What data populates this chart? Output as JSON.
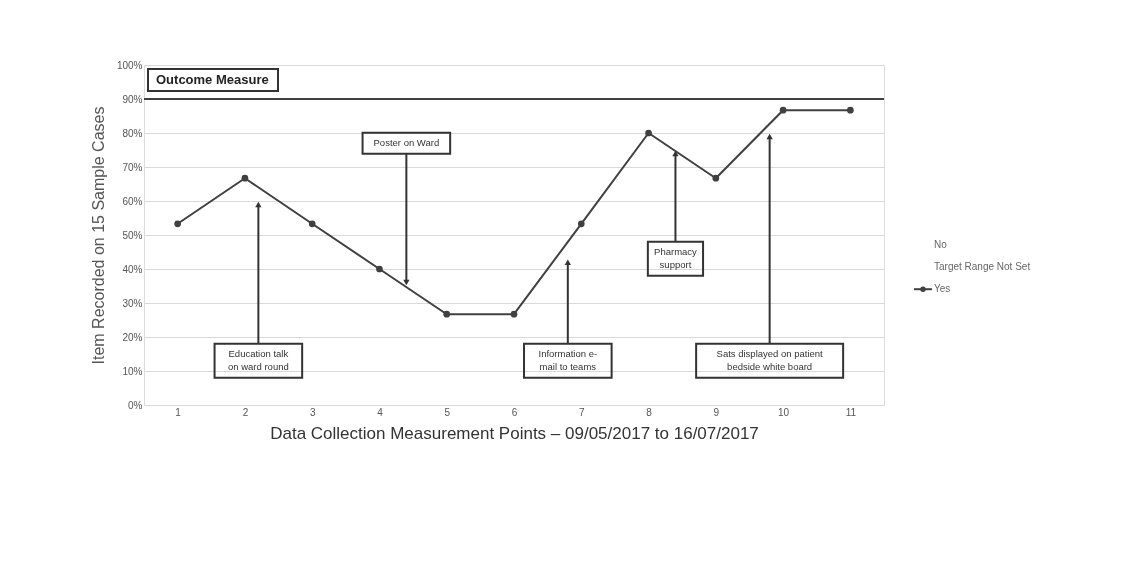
{
  "chart_data": {
    "type": "line",
    "title": "Outcome Measure",
    "xlabel": "Data Collection  Measurement Points – 09/05/2017 to 16/07/2017",
    "ylabel": "Item Recorded on 15 Sample Cases",
    "x": [
      1,
      2,
      3,
      4,
      5,
      6,
      7,
      8,
      9,
      10,
      11
    ],
    "series": [
      {
        "name": "Yes",
        "color": "#404040",
        "values": [
          53.3,
          66.7,
          53.3,
          40,
          26.7,
          26.7,
          53.3,
          80,
          66.7,
          86.7,
          86.7
        ]
      }
    ],
    "xlim": [
      0.5,
      11.5
    ],
    "xticks": [
      1,
      2,
      3,
      4,
      5,
      6,
      7,
      8,
      9,
      10,
      11
    ],
    "ylim": [
      0,
      100
    ],
    "yticks": [
      {
        "value": 0,
        "label": "0%"
      },
      {
        "value": 10,
        "label": "10%"
      },
      {
        "value": 20,
        "label": "20%"
      },
      {
        "value": 30,
        "label": "30%"
      },
      {
        "value": 40,
        "label": "40%"
      },
      {
        "value": 50,
        "label": "50%"
      },
      {
        "value": 60,
        "label": "60%"
      },
      {
        "value": 70,
        "label": "70%"
      },
      {
        "value": 80,
        "label": "80%"
      },
      {
        "value": 90,
        "label": "90%"
      },
      {
        "value": 100,
        "label": "100%"
      }
    ],
    "ref_lines": [
      {
        "axis": "y",
        "value": 90,
        "color": "#404040"
      }
    ],
    "annotations": [
      {
        "text": "Education talk\non ward round",
        "x": 2.2,
        "y": 59
      },
      {
        "text": "Poster on Ward",
        "x": 4.4,
        "y": 36
      },
      {
        "text": "Information e-\nmail to teams",
        "x": 6.8,
        "y": 42
      },
      {
        "text": "Pharmacy\nsupport",
        "x": 8.4,
        "y": 74
      },
      {
        "text": "Sats displayed on patient\nbedside white board",
        "x": 9.8,
        "y": 79
      },
      "No",
      "Target Range Not Set"
    ],
    "grid": "y",
    "legend": "right",
    "marker": "circle",
    "line_style": "solid"
  }
}
